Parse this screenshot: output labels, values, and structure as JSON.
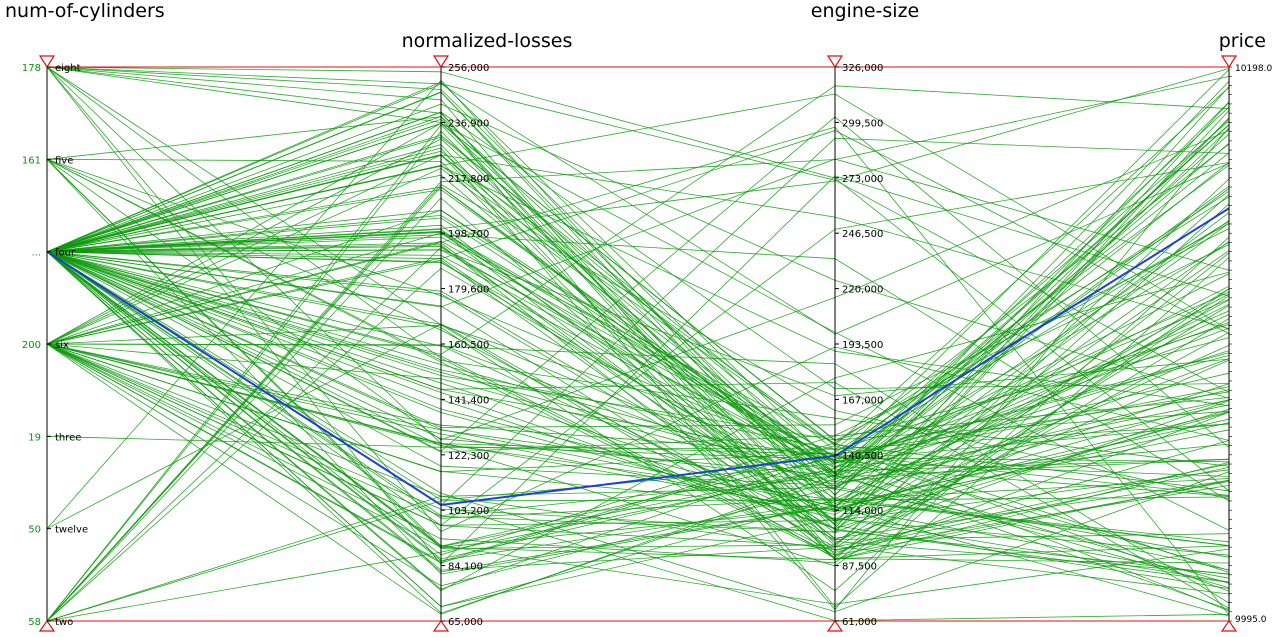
{
  "chart_data": {
    "type": "parallel-coordinates",
    "colors": {
      "line": "#0a9a0a",
      "highlight": "#1f3fd6",
      "range": "#e01010",
      "axis": "#000000"
    },
    "axes": [
      {
        "name": "num-of-cylinders",
        "kind": "categorical",
        "categories": [
          "eight",
          "five",
          "four",
          "six",
          "three",
          "twelve",
          "two"
        ],
        "counts": [
          "178",
          "161",
          "...",
          "200",
          "19",
          "50",
          "58"
        ]
      },
      {
        "name": "normalized-losses",
        "kind": "numeric",
        "ticks": [
          "256,000",
          "236,900",
          "217,800",
          "198,700",
          "179,600",
          "160,500",
          "141,400",
          "122,300",
          "103,200",
          "84,100",
          "65,000"
        ],
        "range": [
          65000,
          256000
        ]
      },
      {
        "name": "engine-size",
        "kind": "numeric",
        "ticks": [
          "326,000",
          "299,500",
          "273,000",
          "246,500",
          "220,000",
          "193,500",
          "167,000",
          "140,500",
          "114,000",
          "87,500",
          "61,000"
        ],
        "range": [
          61000,
          326000
        ]
      },
      {
        "name": "price",
        "kind": "numeric",
        "ticks": [
          "10198.0",
          "9995.0"
        ],
        "range_labels": [
          "10198.0",
          "9995.0"
        ]
      }
    ],
    "highlight": {
      "cylinders": "four",
      "normalized_losses": 105000,
      "engine_size": 140000,
      "price_frac": 0.745
    }
  }
}
